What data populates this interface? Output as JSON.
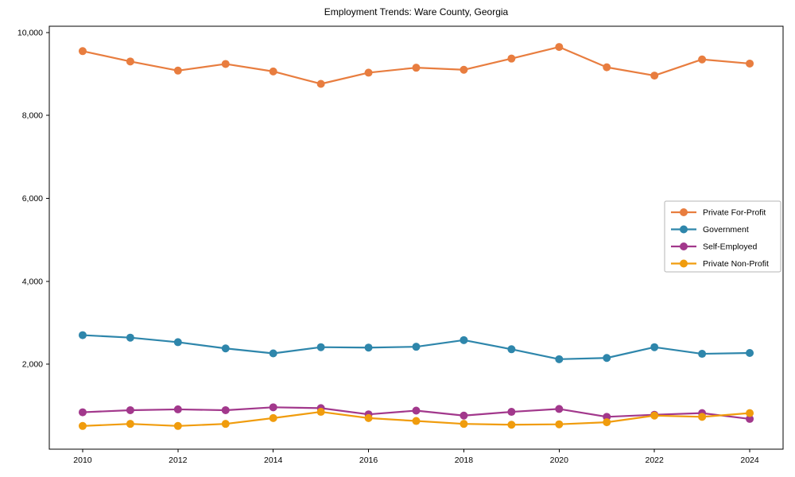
{
  "chart_data": {
    "type": "line",
    "title": "Employment Trends: Ware County, Georgia",
    "xlabel": "",
    "ylabel": "",
    "x": [
      2010,
      2011,
      2012,
      2013,
      2014,
      2015,
      2016,
      2017,
      2018,
      2019,
      2020,
      2021,
      2022,
      2023,
      2024
    ],
    "x_ticks": [
      2010,
      2012,
      2014,
      2016,
      2018,
      2020,
      2022,
      2024
    ],
    "y_ticks": [
      2000,
      4000,
      6000,
      8000,
      10000
    ],
    "y_tick_labels": [
      "2,000",
      "4,000",
      "6,000",
      "8,000",
      "10,000"
    ],
    "xlim": [
      2009.3,
      2024.7
    ],
    "ylim": [
      -50,
      10150
    ],
    "grid": false,
    "legend_position": "center-right",
    "series": [
      {
        "name": "Private For-Profit",
        "color": "#E87D3F",
        "values": [
          9550,
          9300,
          9080,
          9240,
          9060,
          8760,
          9030,
          9150,
          9100,
          9370,
          9650,
          9160,
          8960,
          9350,
          9250
        ]
      },
      {
        "name": "Government",
        "color": "#2E86AB",
        "values": [
          2700,
          2640,
          2530,
          2380,
          2260,
          2410,
          2400,
          2420,
          2580,
          2360,
          2120,
          2150,
          2410,
          2250,
          2270
        ]
      },
      {
        "name": "Self-Employed",
        "color": "#A2388C",
        "values": [
          840,
          890,
          910,
          890,
          960,
          940,
          790,
          880,
          760,
          850,
          920,
          730,
          780,
          820,
          680
        ]
      },
      {
        "name": "Private Non-Profit",
        "color": "#F09C0D",
        "values": [
          510,
          560,
          510,
          560,
          700,
          850,
          700,
          630,
          560,
          540,
          550,
          600,
          760,
          730,
          820
        ]
      }
    ],
    "axis_color": "#000000",
    "legend_border_color": "#b5b5b5",
    "background_color": "#ffffff"
  }
}
